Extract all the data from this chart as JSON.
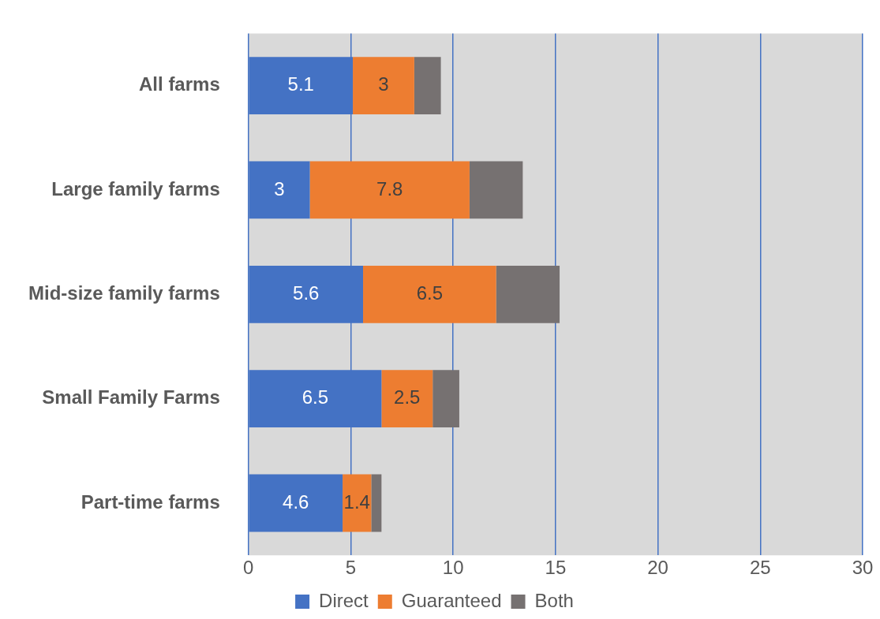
{
  "chart_data": {
    "type": "bar",
    "orientation": "horizontal",
    "stacked": true,
    "categories": [
      "All farms",
      "Large family farms",
      "Mid-size family farms",
      "Small Family Farms",
      "Part-time farms"
    ],
    "series": [
      {
        "name": "Direct",
        "color": "#4472c4",
        "values": [
          5.1,
          3,
          5.6,
          6.5,
          4.6
        ],
        "value_labels": [
          "5.1",
          "3",
          "5.6",
          "6.5",
          "4.6"
        ]
      },
      {
        "name": "Guaranteed",
        "color": "#ed7d31",
        "values": [
          3,
          7.8,
          6.5,
          2.5,
          1.4
        ],
        "value_labels": [
          "3",
          "7.8",
          "6.5",
          "2.5",
          "1.4"
        ]
      },
      {
        "name": "Both",
        "color": "#767171",
        "values": [
          1.3,
          2.6,
          3.1,
          1.3,
          0.5
        ]
      }
    ],
    "xlim": [
      0,
      30
    ],
    "xticks": [
      0,
      5,
      10,
      15,
      20,
      25,
      30
    ],
    "grid": "x",
    "legend": "bottom"
  }
}
